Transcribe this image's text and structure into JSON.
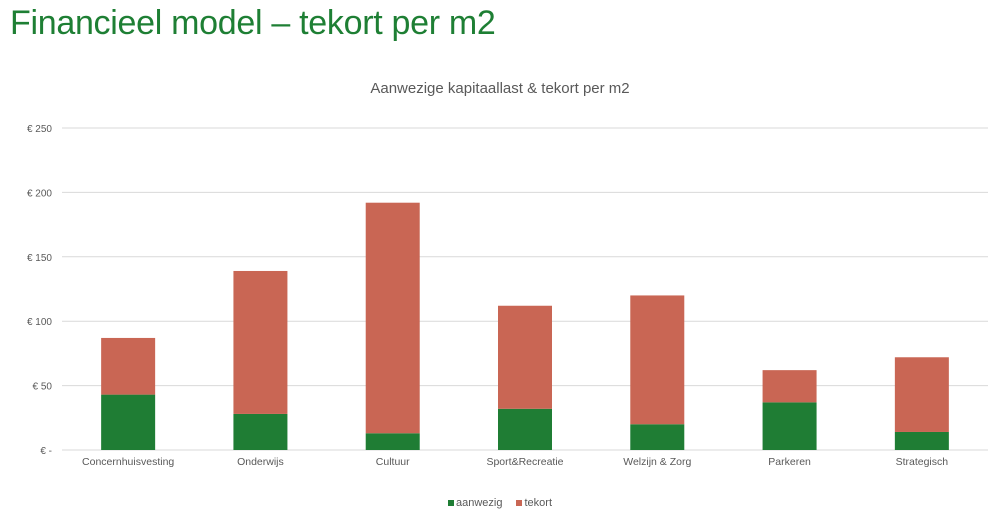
{
  "slide": {
    "title": "Financieel model – tekort per m2"
  },
  "colors": {
    "aanwezig": "#1f7d34",
    "tekort": "#c96654",
    "grid": "#d9d9d9",
    "text": "#595959"
  },
  "chart_data": {
    "type": "bar",
    "stacked": true,
    "title": "Aanwezige kapitaallast & tekort per m2",
    "categories": [
      "Concernhuisvesting",
      "Onderwijs",
      "Cultuur",
      "Sport&Recreatie",
      "Welzijn & Zorg",
      "Parkeren",
      "Strategisch"
    ],
    "series": [
      {
        "name": "aanwezig",
        "values": [
          43,
          28,
          13,
          32,
          20,
          37,
          14
        ]
      },
      {
        "name": "tekort",
        "values": [
          44,
          111,
          179,
          80,
          100,
          25,
          58
        ]
      }
    ],
    "ylim": [
      0,
      250
    ],
    "yticks": [
      0,
      50,
      100,
      150,
      200,
      250
    ],
    "ytick_labels": [
      "€ -",
      "€ 50",
      "€ 100",
      "€ 150",
      "€ 200",
      "€ 250"
    ],
    "grid": true,
    "legend": "bottom"
  }
}
